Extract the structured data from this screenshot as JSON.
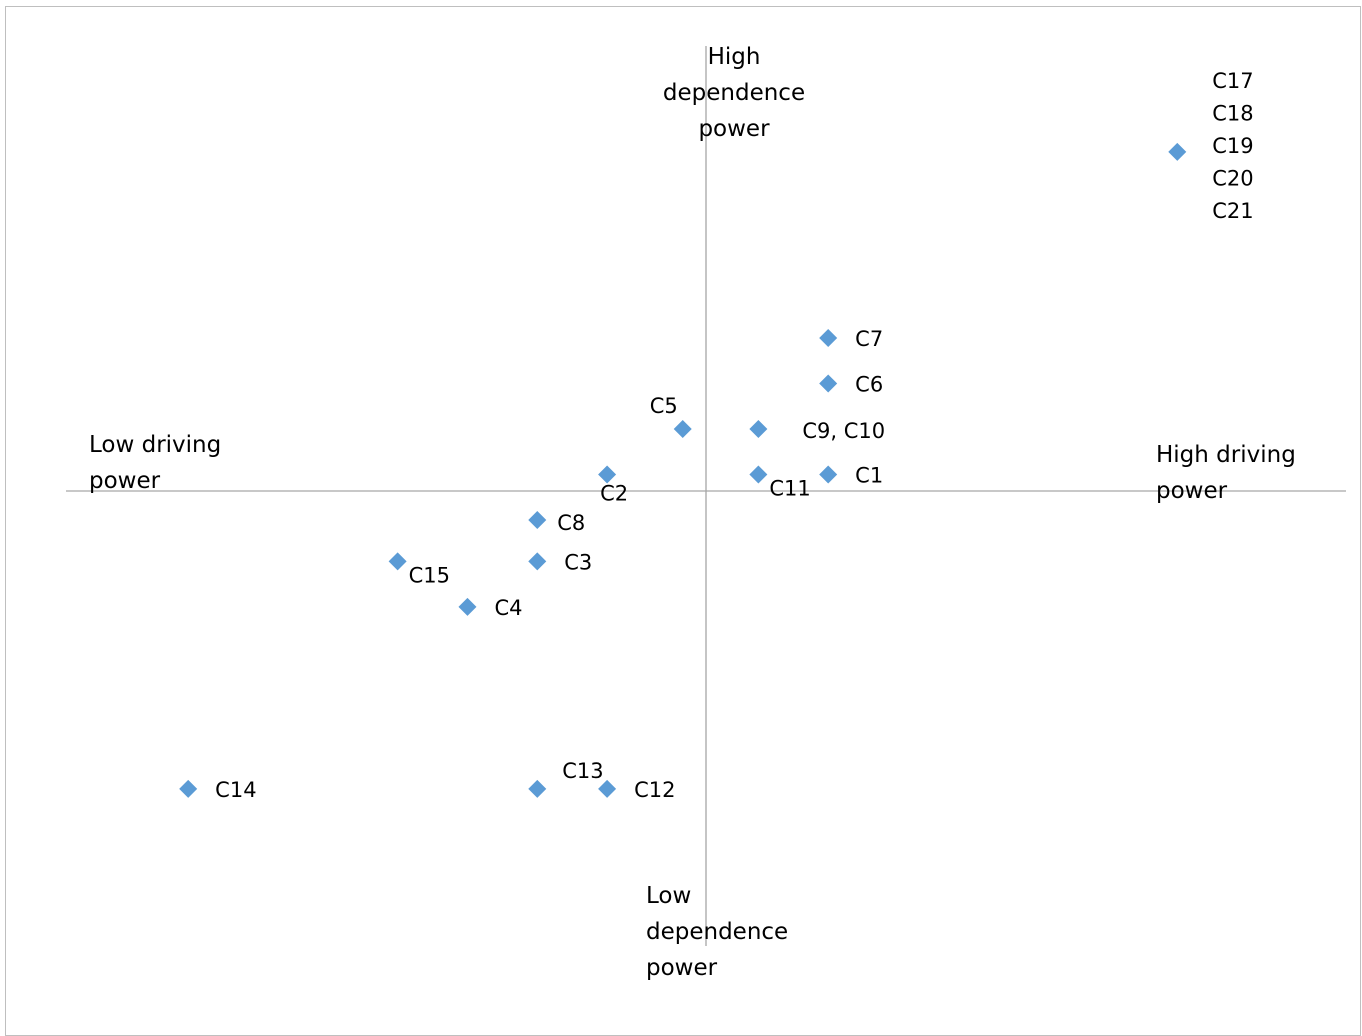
{
  "chart_data": {
    "type": "scatter",
    "title": "",
    "xlabel": "",
    "ylabel": "",
    "xlim": [
      0,
      22
    ],
    "ylim": [
      0,
      22
    ],
    "axis_crossing": [
      11,
      11
    ],
    "grid": false,
    "marker": "diamond",
    "marker_color": "#5b9bd5",
    "axis_color": "#a6a6a6",
    "quadrant_labels": {
      "top": [
        "High",
        "dependence",
        "power"
      ],
      "bottom": [
        "Low",
        "dependence",
        "power"
      ],
      "left": [
        "Low driving",
        "power"
      ],
      "right": [
        "High driving",
        "power"
      ]
    },
    "points": [
      {
        "label": [
          "C17",
          "C18",
          "C19",
          "C20",
          "C21"
        ],
        "x": 19.1,
        "y": 19.2,
        "label_pos": "right-stack"
      },
      {
        "label": [
          "C7"
        ],
        "x": 13.1,
        "y": 14.7,
        "label_pos": "right"
      },
      {
        "label": [
          "C6"
        ],
        "x": 13.1,
        "y": 13.6,
        "label_pos": "right"
      },
      {
        "label": [
          "C5"
        ],
        "x": 10.6,
        "y": 12.5,
        "label_pos": "above-left"
      },
      {
        "label": [
          "C9, C10"
        ],
        "x": 11.9,
        "y": 12.5,
        "label_pos": "right-far"
      },
      {
        "label": [
          "C2"
        ],
        "x": 9.3,
        "y": 11.4,
        "label_pos": "below"
      },
      {
        "label": [
          "C11"
        ],
        "x": 11.9,
        "y": 11.4,
        "label_pos": "below-right"
      },
      {
        "label": [
          "C1"
        ],
        "x": 13.1,
        "y": 11.4,
        "label_pos": "right"
      },
      {
        "label": [
          "C8"
        ],
        "x": 8.1,
        "y": 10.3,
        "label_pos": "right-low"
      },
      {
        "label": [
          "C3"
        ],
        "x": 8.1,
        "y": 9.3,
        "label_pos": "right"
      },
      {
        "label": [
          "C15"
        ],
        "x": 5.7,
        "y": 9.3,
        "label_pos": "below-right"
      },
      {
        "label": [
          "C4"
        ],
        "x": 6.9,
        "y": 8.2,
        "label_pos": "right"
      },
      {
        "label": [
          "C14"
        ],
        "x": 2.1,
        "y": 3.8,
        "label_pos": "right"
      },
      {
        "label": [
          "C13"
        ],
        "x": 8.1,
        "y": 3.8,
        "label_pos": "above-right"
      },
      {
        "label": [
          "C12"
        ],
        "x": 9.3,
        "y": 3.8,
        "label_pos": "right"
      }
    ]
  }
}
